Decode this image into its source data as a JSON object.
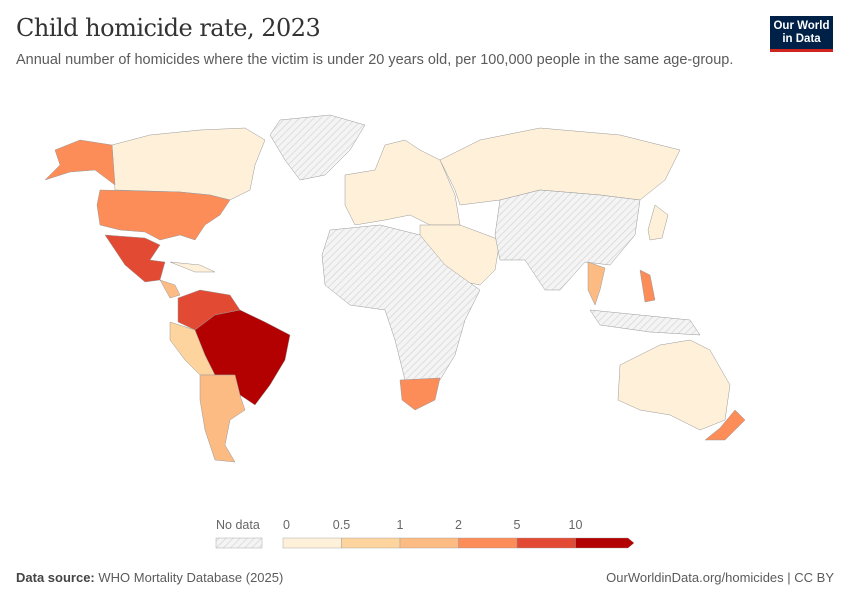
{
  "header": {
    "title": "Child homicide rate, 2023",
    "subtitle": "Annual number of homicides where the victim is under 20 years old, per 100,000 people in the same age-group.",
    "logo_text": "Our World in Data"
  },
  "legend": {
    "no_data_label": "No data",
    "no_data_pattern": "hatched",
    "bins": [
      {
        "from": "0",
        "to": "0.5",
        "color": "#fef0d9"
      },
      {
        "from": "0.5",
        "to": "1",
        "color": "#fdd49e"
      },
      {
        "from": "1",
        "to": "2",
        "color": "#fdbb84"
      },
      {
        "from": "2",
        "to": "5",
        "color": "#fc8d59"
      },
      {
        "from": "5",
        "to": "10",
        "color": "#e34a33"
      },
      {
        "from": "10",
        "to": null,
        "color": "#b30000"
      }
    ],
    "tick_labels": [
      "0",
      "0.5",
      "1",
      "2",
      "5",
      "10"
    ]
  },
  "footer": {
    "source_label": "Data source:",
    "source": "WHO Mortality Database (2025)",
    "link": "OurWorldinData.org/homicides | CC BY"
  }
}
